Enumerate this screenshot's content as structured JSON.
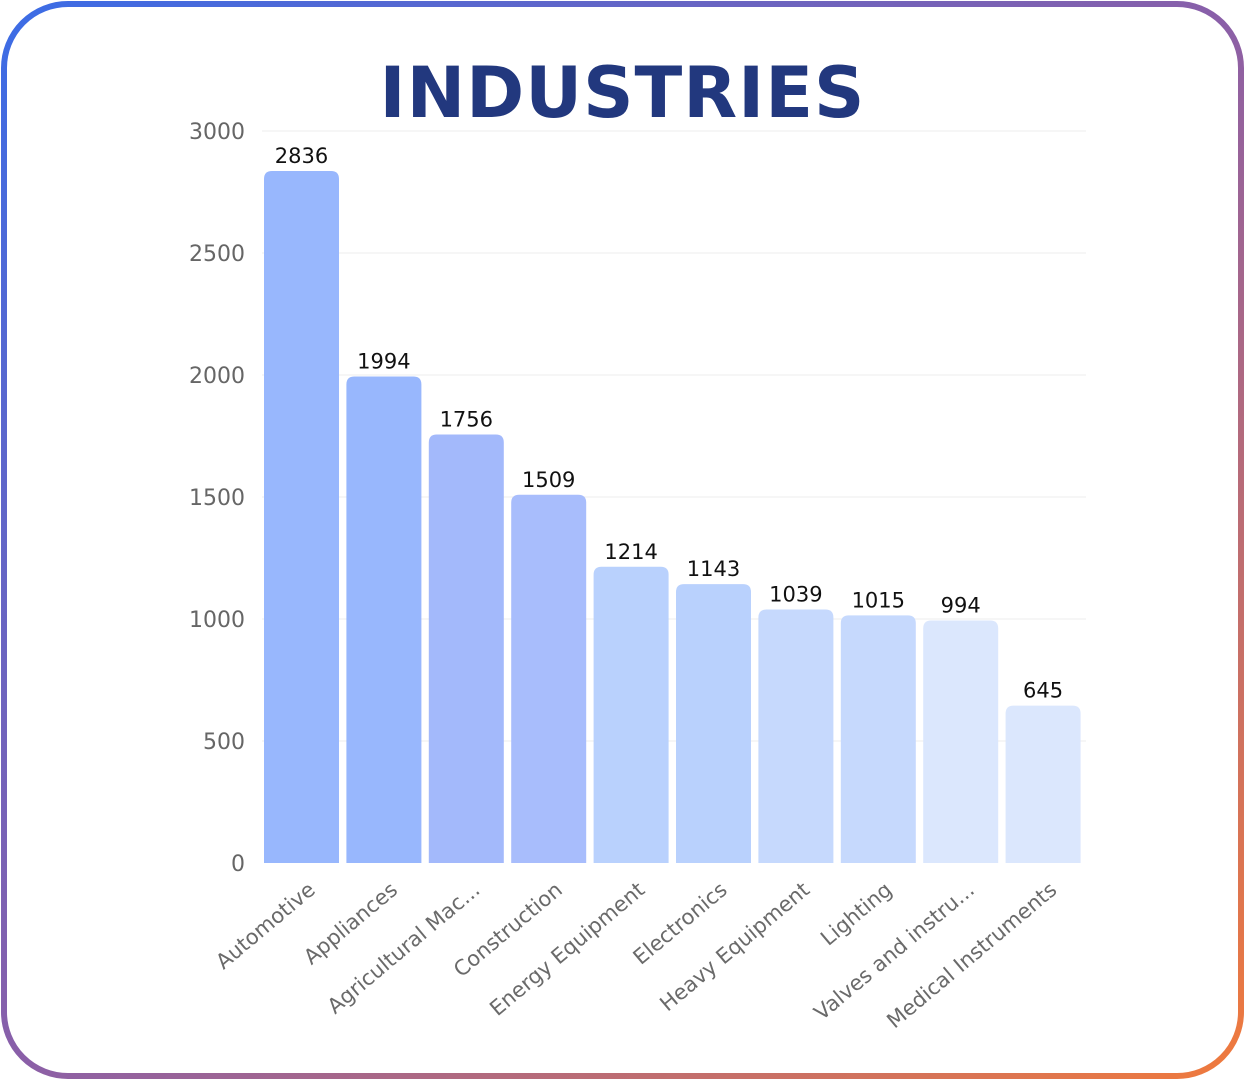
{
  "chart_data": {
    "type": "bar",
    "title": "INDUSTRIES",
    "xlabel": "",
    "ylabel": "",
    "ylim": [
      0,
      3000
    ],
    "yticks": [
      0,
      500,
      1000,
      1500,
      2000,
      2500,
      3000
    ],
    "grid": true,
    "categories": [
      "Automotive",
      "Appliances",
      "Agricultural Mac...",
      "Construction",
      "Energy Equipment",
      "Electronics",
      "Heavy Equipment",
      "Lighting",
      "Valves and instru...",
      "Medical Instruments"
    ],
    "values": [
      2836,
      1994,
      1756,
      1509,
      1214,
      1143,
      1039,
      1015,
      994,
      645
    ],
    "colors": [
      "#98b7fd",
      "#98b7fd",
      "#a3b9fb",
      "#a8bdfc",
      "#b9d1fd",
      "#b9d1fd",
      "#c6d9fd",
      "#c6d9fd",
      "#dbe7fd",
      "#dbe7fd"
    ],
    "border_gradient": [
      "#3b6ce6",
      "#f07a3c"
    ]
  }
}
